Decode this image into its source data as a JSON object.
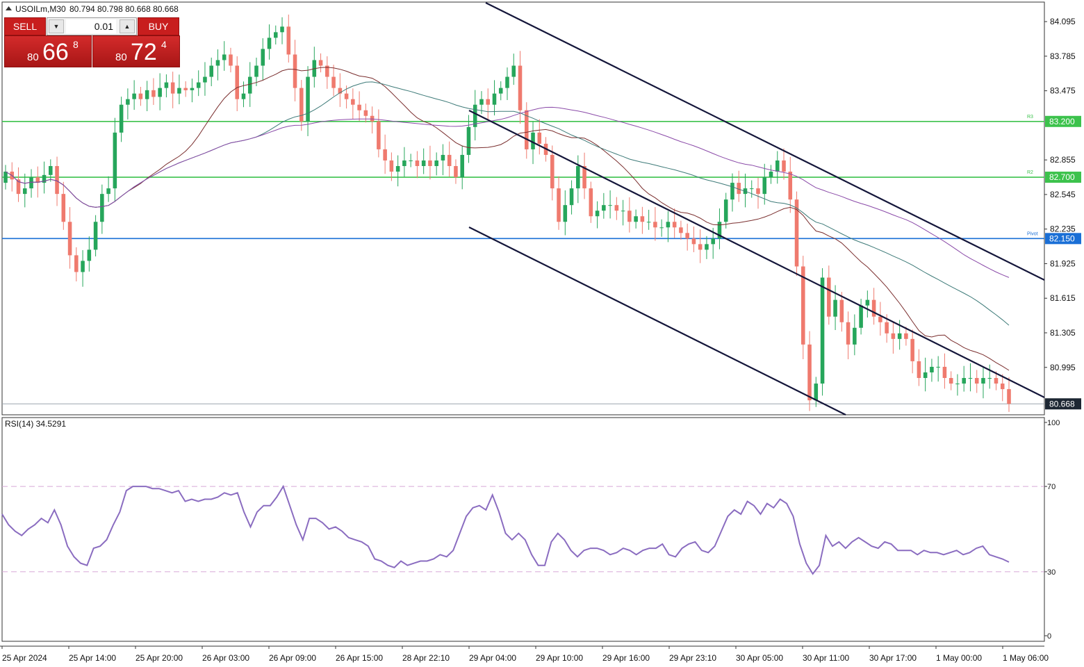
{
  "header": {
    "symbol": "USOILm,M30",
    "ohlc": "80.794 80.798 80.668 80.668"
  },
  "trade_panel": {
    "sell_label": "SELL",
    "buy_label": "BUY",
    "lot": "0.01",
    "sell_price_small": "80",
    "sell_price_big": "66",
    "sell_price_sup": "8",
    "buy_price_small": "80",
    "buy_price_big": "72",
    "buy_price_sup": "4"
  },
  "colors": {
    "bull": "#26a65b",
    "bear": "#ef7a6e",
    "rsi": "#8a6cc0",
    "hline_green": "#3cc24c",
    "hline_blue": "#1a6fd6",
    "channel": "#14163a"
  },
  "chart_data": [
    {
      "type": "candlestick",
      "title": "USOILm,M30",
      "y_ticks": [
        "84.095",
        "83.785",
        "83.475",
        "82.855",
        "82.545",
        "82.235",
        "81.925",
        "81.615",
        "81.305",
        "80.995"
      ],
      "ylim": [
        80.57,
        84.27
      ],
      "x_ticks": [
        "25 Apr 2024",
        "25 Apr 14:00",
        "25 Apr 20:00",
        "26 Apr 03:00",
        "26 Apr 09:00",
        "26 Apr 15:00",
        "28 Apr 22:10",
        "29 Apr 04:00",
        "29 Apr 10:00",
        "29 Apr 16:00",
        "29 Apr 23:10",
        "30 Apr 05:00",
        "30 Apr 11:00",
        "30 Apr 17:00",
        "1 May 00:00",
        "1 May 06:00"
      ],
      "levels": [
        {
          "label": "83.200",
          "name": "R3",
          "value": 83.2,
          "color": "#3cc24c"
        },
        {
          "label": "82.700",
          "name": "R2",
          "value": 82.7,
          "color": "#3cc24c"
        },
        {
          "label": "82.150",
          "name": "Pivot",
          "value": 82.15,
          "color": "#1a6fd6"
        }
      ],
      "last_price": "80.668",
      "closes": [
        82.75,
        82.68,
        82.55,
        82.6,
        82.7,
        82.65,
        82.72,
        82.8,
        82.55,
        82.3,
        82.0,
        81.85,
        81.95,
        82.05,
        82.3,
        82.55,
        82.6,
        83.1,
        83.35,
        83.4,
        83.45,
        83.4,
        83.48,
        83.42,
        83.5,
        83.55,
        83.45,
        83.5,
        83.48,
        83.5,
        83.55,
        83.6,
        83.7,
        83.75,
        83.8,
        83.7,
        83.4,
        83.45,
        83.6,
        83.7,
        83.85,
        83.95,
        84.0,
        84.05,
        83.8,
        83.5,
        83.2,
        83.6,
        83.75,
        83.7,
        83.6,
        83.5,
        83.45,
        83.4,
        83.35,
        83.3,
        83.25,
        83.2,
        82.95,
        82.85,
        82.75,
        82.8,
        82.85,
        82.85,
        82.8,
        82.85,
        82.8,
        82.85,
        82.9,
        82.8,
        82.7,
        82.9,
        83.15,
        83.35,
        83.4,
        83.35,
        83.45,
        83.5,
        83.6,
        83.7,
        83.3,
        82.95,
        83.1,
        83.0,
        82.9,
        82.6,
        82.3,
        82.45,
        82.6,
        82.8,
        82.6,
        82.35,
        82.4,
        82.45,
        82.45,
        82.4,
        82.4,
        82.3,
        82.35,
        82.3,
        82.3,
        82.25,
        82.25,
        82.3,
        82.25,
        82.2,
        82.15,
        82.1,
        82.05,
        82.1,
        82.15,
        82.3,
        82.5,
        82.65,
        82.55,
        82.6,
        82.6,
        82.55,
        82.7,
        82.75,
        82.85,
        82.75,
        82.5,
        81.9,
        81.2,
        80.7,
        80.85,
        81.8,
        81.45,
        81.6,
        81.4,
        81.2,
        81.35,
        81.55,
        81.6,
        81.45,
        81.4,
        81.3,
        81.25,
        81.3,
        81.25,
        81.05,
        80.9,
        80.95,
        81.0,
        81.0,
        80.9,
        80.85,
        80.85,
        80.9,
        80.9,
        80.85,
        80.9,
        80.9,
        80.85,
        80.8,
        80.668
      ]
    },
    {
      "type": "line",
      "title": "RSI(14) 34.5291",
      "series": [
        {
          "name": "RSI(14)",
          "values": [
            57,
            52,
            49,
            47,
            50,
            52,
            55,
            53,
            59,
            52,
            42,
            37,
            34,
            33,
            41,
            42,
            45,
            52,
            58,
            68,
            70,
            70,
            70,
            69,
            69,
            68,
            67,
            68,
            63,
            64,
            63,
            64,
            64,
            65,
            67,
            66,
            67,
            58,
            51,
            58,
            61,
            61,
            65,
            70,
            61,
            52,
            45,
            55,
            55,
            53,
            50,
            51,
            49,
            46,
            45,
            44,
            42,
            36,
            35,
            33,
            32,
            35,
            33,
            34,
            35,
            35,
            36,
            38,
            37,
            40,
            48,
            56,
            60,
            61,
            59,
            66,
            58,
            48,
            45,
            48,
            45,
            38,
            33,
            33,
            44,
            48,
            45,
            40,
            37,
            40,
            41,
            41,
            40,
            38,
            39,
            41,
            40,
            38,
            40,
            41,
            41,
            43,
            38,
            37,
            41,
            43,
            44,
            40,
            39,
            42,
            49,
            56,
            59,
            57,
            63,
            61,
            57,
            62,
            60,
            64,
            62,
            56,
            43,
            34,
            29,
            33,
            47,
            42,
            44,
            41,
            44,
            46,
            44,
            42,
            41,
            44,
            43,
            40,
            40,
            40,
            38,
            40,
            39,
            39,
            38,
            39,
            40,
            38,
            39,
            41,
            42,
            38,
            37,
            36,
            34.53
          ]
        }
      ],
      "y_ticks": [
        "100",
        "70",
        "30",
        "0"
      ],
      "ylim": [
        0,
        100
      ],
      "levels": [
        70,
        30
      ]
    }
  ]
}
